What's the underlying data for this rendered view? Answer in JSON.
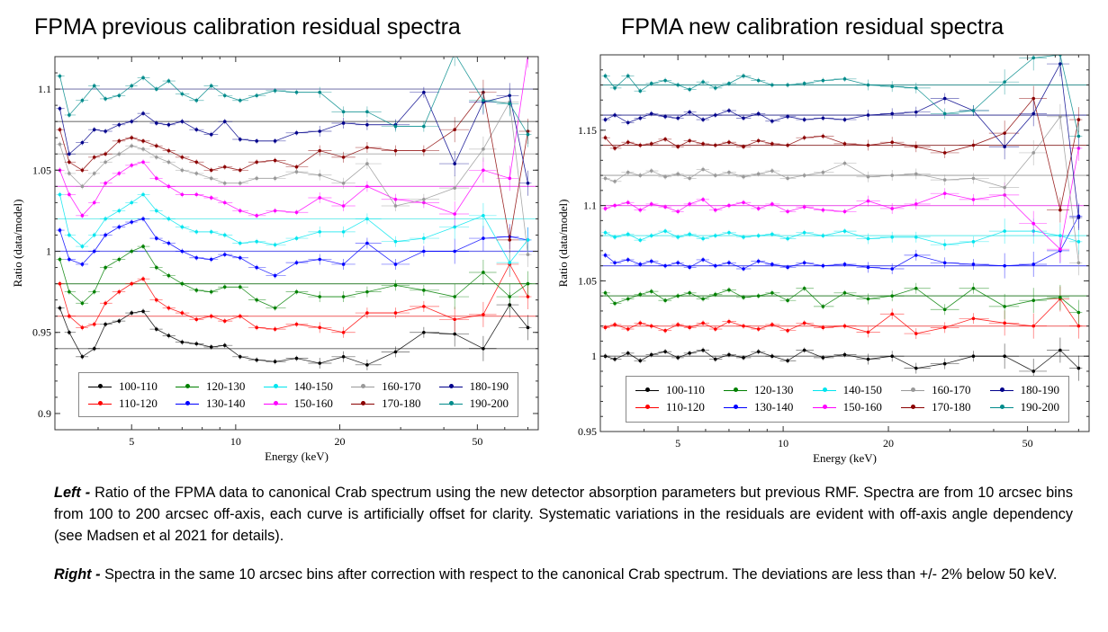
{
  "titles": {
    "left": "FPMA previous calibration residual spectra",
    "right": "FPMA new calibration residual spectra"
  },
  "captions": {
    "left_lead": "Left -",
    "left_text": " Ratio of the FPMA data to canonical Crab spectrum using the new detector absorption parameters but previous RMF. Spectra are from 10 arcsec bins from 100 to 200 arcsec off-axis, each curve is artificially offset for clarity. Systematic variations in the residuals are evident with off-axis angle dependency (see Madsen et al 2021 for details).",
    "right_lead": "Right -",
    "right_text": " Spectra in the same 10 arcsec bins after correction with respect to the canonical Crab spectrum. The deviations are less than +/- 2% below 50 keV."
  },
  "chart_data": [
    {
      "type": "scatter",
      "title": "FPMA previous calibration residual spectra",
      "xlabel": "Energy (keV)",
      "ylabel": "Ratio (data/model)",
      "xscale": "log",
      "xlim": [
        3,
        75
      ],
      "ylim": [
        0.89,
        1.12
      ],
      "xticks": [
        5,
        10,
        20,
        50
      ],
      "xtick_labels": [
        "5",
        "10",
        "20",
        "50"
      ],
      "yticks": [
        0.9,
        0.95,
        1,
        1.05,
        1.1
      ],
      "ytick_labels": [
        "0.9",
        "0.95",
        "1",
        "1.05",
        "1.1"
      ],
      "legend_position": "bottom",
      "grid": false,
      "reference_lines": [
        {
          "y": 0.94,
          "color": "#8a8a8a"
        },
        {
          "y": 0.96,
          "color": "#f07070"
        },
        {
          "y": 0.98,
          "color": "#5a9a5a"
        },
        {
          "y": 1.0,
          "color": "#6a6aee"
        },
        {
          "y": 1.02,
          "color": "#7feeee"
        },
        {
          "y": 1.04,
          "color": "#ee70ee"
        },
        {
          "y": 1.06,
          "color": "#c0c0c0"
        },
        {
          "y": 1.08,
          "color": "#777777"
        },
        {
          "y": 1.1,
          "color": "#8080b0"
        }
      ],
      "x": [
        3.1,
        3.3,
        3.6,
        3.9,
        4.2,
        4.6,
        5.0,
        5.4,
        5.9,
        6.4,
        7.0,
        7.7,
        8.5,
        9.3,
        10.3,
        11.5,
        13,
        15,
        17.5,
        20.5,
        24,
        29,
        35,
        43,
        52,
        62,
        70
      ],
      "series": [
        {
          "name": "100-110",
          "color": "#000000",
          "values": [
            0.965,
            0.95,
            0.935,
            0.94,
            0.955,
            0.957,
            0.962,
            0.963,
            0.952,
            0.948,
            0.944,
            0.943,
            0.941,
            0.942,
            0.935,
            0.933,
            0.932,
            0.934,
            0.931,
            0.935,
            0.93,
            0.938,
            0.95,
            0.949,
            0.94,
            0.967,
            0.953
          ]
        },
        {
          "name": "110-120",
          "color": "#ff0000",
          "values": [
            0.98,
            0.96,
            0.953,
            0.955,
            0.968,
            0.975,
            0.98,
            0.983,
            0.97,
            0.965,
            0.962,
            0.958,
            0.96,
            0.957,
            0.96,
            0.953,
            0.952,
            0.955,
            0.953,
            0.95,
            0.962,
            0.962,
            0.966,
            0.958,
            0.961,
            0.992,
            0.972
          ]
        },
        {
          "name": "120-130",
          "color": "#008000",
          "values": [
            0.995,
            0.975,
            0.968,
            0.975,
            0.99,
            0.995,
            1.0,
            1.003,
            0.99,
            0.985,
            0.98,
            0.976,
            0.975,
            0.978,
            0.978,
            0.97,
            0.965,
            0.975,
            0.972,
            0.972,
            0.975,
            0.979,
            0.976,
            0.972,
            0.987,
            0.972,
            0.98
          ]
        },
        {
          "name": "130-140",
          "color": "#0000ff",
          "values": [
            1.013,
            0.995,
            0.992,
            1.0,
            1.01,
            1.015,
            1.018,
            1.02,
            1.008,
            1.005,
            1.0,
            0.996,
            0.995,
            0.998,
            0.996,
            0.99,
            0.985,
            0.993,
            0.995,
            0.992,
            1.005,
            0.992,
            1.0,
            1.0,
            1.008,
            1.009,
            1.007
          ]
        },
        {
          "name": "140-150",
          "color": "#00e5ee",
          "values": [
            1.035,
            1.01,
            1.003,
            1.01,
            1.02,
            1.025,
            1.03,
            1.035,
            1.025,
            1.02,
            1.015,
            1.012,
            1.012,
            1.01,
            1.005,
            1.006,
            1.004,
            1.008,
            1.012,
            1.012,
            1.02,
            1.006,
            1.008,
            1.015,
            1.022,
            0.993,
            1.007
          ]
        },
        {
          "name": "150-160",
          "color": "#ff00ff",
          "values": [
            1.05,
            1.035,
            1.022,
            1.03,
            1.042,
            1.048,
            1.053,
            1.055,
            1.045,
            1.04,
            1.035,
            1.035,
            1.033,
            1.03,
            1.025,
            1.022,
            1.025,
            1.024,
            1.033,
            1.028,
            1.04,
            1.032,
            1.03,
            1.023,
            1.05,
            1.045,
            1.121
          ]
        },
        {
          "name": "160-170",
          "color": "#999999",
          "values": [
            1.066,
            1.048,
            1.04,
            1.048,
            1.055,
            1.06,
            1.065,
            1.063,
            1.058,
            1.055,
            1.05,
            1.048,
            1.045,
            1.042,
            1.042,
            1.045,
            1.045,
            1.049,
            1.047,
            1.042,
            1.054,
            1.028,
            1.032,
            1.039,
            1.063,
            1.092,
            0.998
          ]
        },
        {
          "name": "170-180",
          "color": "#8b0000",
          "values": [
            1.075,
            1.055,
            1.05,
            1.058,
            1.06,
            1.068,
            1.07,
            1.068,
            1.065,
            1.062,
            1.058,
            1.055,
            1.05,
            1.052,
            1.05,
            1.055,
            1.056,
            1.052,
            1.062,
            1.058,
            1.064,
            1.062,
            1.062,
            1.075,
            1.098,
            1.007,
            1.074
          ]
        },
        {
          "name": "180-190",
          "color": "#00008b",
          "values": [
            1.088,
            1.06,
            1.067,
            1.075,
            1.074,
            1.078,
            1.08,
            1.085,
            1.079,
            1.078,
            1.08,
            1.075,
            1.072,
            1.08,
            1.069,
            1.068,
            1.068,
            1.073,
            1.074,
            1.079,
            1.078,
            1.078,
            1.098,
            1.054,
            1.092,
            1.096,
            1.042
          ]
        },
        {
          "name": "190-200",
          "color": "#008b8b",
          "values": [
            1.108,
            1.084,
            1.093,
            1.102,
            1.094,
            1.096,
            1.102,
            1.107,
            1.1,
            1.105,
            1.097,
            1.093,
            1.102,
            1.096,
            1.093,
            1.096,
            1.099,
            1.098,
            1.098,
            1.086,
            1.086,
            1.077,
            1.077,
            1.122,
            1.093,
            1.091,
            1.072
          ]
        }
      ]
    },
    {
      "type": "scatter",
      "title": "FPMA new calibration residual spectra",
      "xlabel": "Energy (keV)",
      "ylabel": "Ratio (data/model)",
      "xscale": "log",
      "xlim": [
        3,
        75
      ],
      "ylim": [
        0.95,
        1.2
      ],
      "xticks": [
        5,
        10,
        20,
        50
      ],
      "xtick_labels": [
        "5",
        "10",
        "20",
        "50"
      ],
      "yticks": [
        0.95,
        1,
        1.05,
        1.1,
        1.15
      ],
      "ytick_labels": [
        "0.95",
        "1",
        "1.05",
        "1.1",
        "1.15"
      ],
      "legend_position": "bottom",
      "grid": false,
      "reference_lines": [
        {
          "y": 1.0,
          "color": "#777777"
        },
        {
          "y": 1.02,
          "color": "#f07070"
        },
        {
          "y": 1.04,
          "color": "#5a9a5a"
        },
        {
          "y": 1.06,
          "color": "#6a6aee"
        },
        {
          "y": 1.08,
          "color": "#7feeee"
        },
        {
          "y": 1.1,
          "color": "#ee70ee"
        },
        {
          "y": 1.12,
          "color": "#aaaaaa"
        },
        {
          "y": 1.14,
          "color": "#a05050"
        },
        {
          "y": 1.16,
          "color": "#5050a0"
        },
        {
          "y": 1.18,
          "color": "#50a0a0"
        }
      ],
      "x": [
        3.1,
        3.3,
        3.6,
        3.9,
        4.2,
        4.6,
        5.0,
        5.4,
        5.9,
        6.4,
        7.0,
        7.7,
        8.5,
        9.3,
        10.3,
        11.5,
        13,
        15,
        17.5,
        20.5,
        24,
        29,
        35,
        43,
        52,
        62,
        70
      ],
      "series": [
        {
          "name": "100-110",
          "color": "#000000",
          "values": [
            1.0,
            0.998,
            1.002,
            0.997,
            1.001,
            1.003,
            0.999,
            1.002,
            1.004,
            0.998,
            1.001,
            0.999,
            1.003,
            1.0,
            0.997,
            1.004,
            0.999,
            1.001,
            0.998,
            1.0,
            0.992,
            0.995,
            1.0,
            1.0,
            0.99,
            1.004,
            0.992
          ]
        },
        {
          "name": "110-120",
          "color": "#ff0000",
          "values": [
            1.019,
            1.021,
            1.018,
            1.022,
            1.02,
            1.017,
            1.021,
            1.019,
            1.022,
            1.018,
            1.023,
            1.02,
            1.018,
            1.021,
            1.017,
            1.022,
            1.019,
            1.02,
            1.016,
            1.028,
            1.015,
            1.019,
            1.025,
            1.022,
            1.02,
            1.038,
            1.02
          ]
        },
        {
          "name": "120-130",
          "color": "#008000",
          "values": [
            1.042,
            1.035,
            1.038,
            1.041,
            1.043,
            1.037,
            1.04,
            1.042,
            1.038,
            1.041,
            1.044,
            1.039,
            1.04,
            1.042,
            1.037,
            1.045,
            1.033,
            1.042,
            1.038,
            1.04,
            1.045,
            1.031,
            1.045,
            1.033,
            1.037,
            1.039,
            1.029
          ]
        },
        {
          "name": "130-140",
          "color": "#0000ff",
          "values": [
            1.067,
            1.062,
            1.064,
            1.061,
            1.063,
            1.06,
            1.062,
            1.059,
            1.064,
            1.06,
            1.062,
            1.058,
            1.063,
            1.061,
            1.059,
            1.062,
            1.06,
            1.061,
            1.059,
            1.058,
            1.067,
            1.062,
            1.061,
            1.06,
            1.061,
            1.07,
            1.093
          ]
        },
        {
          "name": "140-150",
          "color": "#00e5ee",
          "values": [
            1.082,
            1.079,
            1.081,
            1.077,
            1.08,
            1.083,
            1.079,
            1.081,
            1.078,
            1.08,
            1.082,
            1.079,
            1.08,
            1.081,
            1.078,
            1.082,
            1.08,
            1.083,
            1.078,
            1.079,
            1.079,
            1.074,
            1.076,
            1.083,
            1.083,
            1.08,
            1.076
          ]
        },
        {
          "name": "150-160",
          "color": "#ff00ff",
          "values": [
            1.098,
            1.1,
            1.102,
            1.097,
            1.101,
            1.099,
            1.096,
            1.101,
            1.104,
            1.097,
            1.1,
            1.102,
            1.098,
            1.101,
            1.096,
            1.099,
            1.097,
            1.096,
            1.103,
            1.098,
            1.101,
            1.108,
            1.104,
            1.107,
            1.088,
            1.071,
            1.138
          ]
        },
        {
          "name": "160-170",
          "color": "#999999",
          "values": [
            1.118,
            1.116,
            1.122,
            1.12,
            1.123,
            1.119,
            1.121,
            1.118,
            1.124,
            1.12,
            1.122,
            1.119,
            1.121,
            1.123,
            1.118,
            1.12,
            1.122,
            1.128,
            1.119,
            1.12,
            1.121,
            1.117,
            1.118,
            1.112,
            1.135,
            1.159,
            1.062
          ]
        },
        {
          "name": "170-180",
          "color": "#8b0000",
          "values": [
            1.145,
            1.138,
            1.142,
            1.14,
            1.141,
            1.144,
            1.139,
            1.143,
            1.141,
            1.14,
            1.142,
            1.139,
            1.143,
            1.141,
            1.14,
            1.145,
            1.146,
            1.141,
            1.14,
            1.142,
            1.139,
            1.135,
            1.14,
            1.148,
            1.171,
            1.097,
            1.157
          ]
        },
        {
          "name": "180-190",
          "color": "#00008b",
          "values": [
            1.157,
            1.16,
            1.155,
            1.158,
            1.161,
            1.159,
            1.158,
            1.162,
            1.157,
            1.16,
            1.163,
            1.158,
            1.161,
            1.156,
            1.159,
            1.157,
            1.158,
            1.157,
            1.16,
            1.161,
            1.162,
            1.171,
            1.163,
            1.139,
            1.161,
            1.194,
            1.092
          ]
        },
        {
          "name": "190-200",
          "color": "#008b8b",
          "values": [
            1.186,
            1.178,
            1.186,
            1.176,
            1.181,
            1.183,
            1.18,
            1.177,
            1.182,
            1.178,
            1.181,
            1.186,
            1.183,
            1.18,
            1.18,
            1.181,
            1.183,
            1.184,
            1.18,
            1.179,
            1.178,
            1.161,
            1.163,
            1.182,
            1.198,
            1.2,
            1.146
          ]
        }
      ]
    }
  ]
}
